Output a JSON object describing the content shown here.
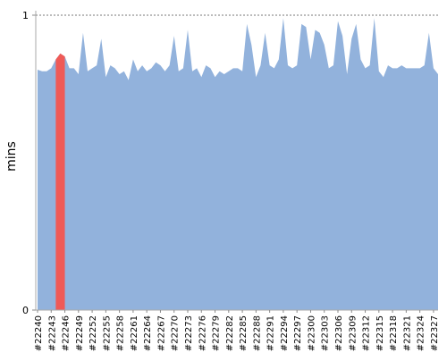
{
  "chart_data": {
    "type": "area",
    "ylabel": "mins",
    "categories": [
      "#22240",
      null,
      null,
      "#22243",
      null,
      null,
      "#22246",
      null,
      null,
      "#22249",
      null,
      null,
      "#22252",
      null,
      null,
      "#22255",
      null,
      null,
      "#22258",
      null,
      null,
      "#22261",
      null,
      null,
      "#22264",
      null,
      null,
      "#22267",
      null,
      null,
      "#22270",
      null,
      null,
      "#22273",
      null,
      null,
      "#22276",
      null,
      null,
      "#22279",
      null,
      null,
      "#22282",
      null,
      null,
      "#22285",
      null,
      null,
      "#22288",
      null,
      null,
      "#22291",
      null,
      null,
      "#22294",
      null,
      null,
      "#22297",
      null,
      null,
      "#22300",
      null,
      null,
      "#22303",
      null,
      null,
      "#22306",
      null,
      null,
      "#22309",
      null,
      null,
      "#22312",
      null,
      null,
      "#22315",
      null,
      null,
      "#22318",
      null,
      null,
      "#22321",
      null,
      null,
      "#22324",
      null,
      null,
      "#22327",
      null
    ],
    "values": [
      0.815,
      0.81,
      0.81,
      0.82,
      0.85,
      0.87,
      0.86,
      0.82,
      0.82,
      0.8,
      0.94,
      0.81,
      0.82,
      0.83,
      0.92,
      0.79,
      0.83,
      0.82,
      0.8,
      0.81,
      0.78,
      0.85,
      0.81,
      0.83,
      0.81,
      0.82,
      0.84,
      0.83,
      0.81,
      0.83,
      0.93,
      0.81,
      0.82,
      0.95,
      0.81,
      0.82,
      0.79,
      0.83,
      0.82,
      0.79,
      0.81,
      0.8,
      0.81,
      0.82,
      0.82,
      0.81,
      0.97,
      0.9,
      0.79,
      0.83,
      0.94,
      0.83,
      0.82,
      0.85,
      0.99,
      0.83,
      0.82,
      0.83,
      0.97,
      0.96,
      0.85,
      0.95,
      0.94,
      0.9,
      0.82,
      0.83,
      0.98,
      0.93,
      0.8,
      0.92,
      0.97,
      0.85,
      0.82,
      0.83,
      0.99,
      0.81,
      0.79,
      0.83,
      0.82,
      0.82,
      0.83,
      0.82,
      0.82,
      0.82,
      0.82,
      0.83,
      0.94,
      0.82,
      0.8
    ],
    "color": "#92b2dc",
    "highlight": [
      5
    ],
    "highlight_color": "#ef5a57",
    "ylim": [
      0,
      1
    ],
    "yticks": [
      0,
      1
    ],
    "grid": true
  }
}
